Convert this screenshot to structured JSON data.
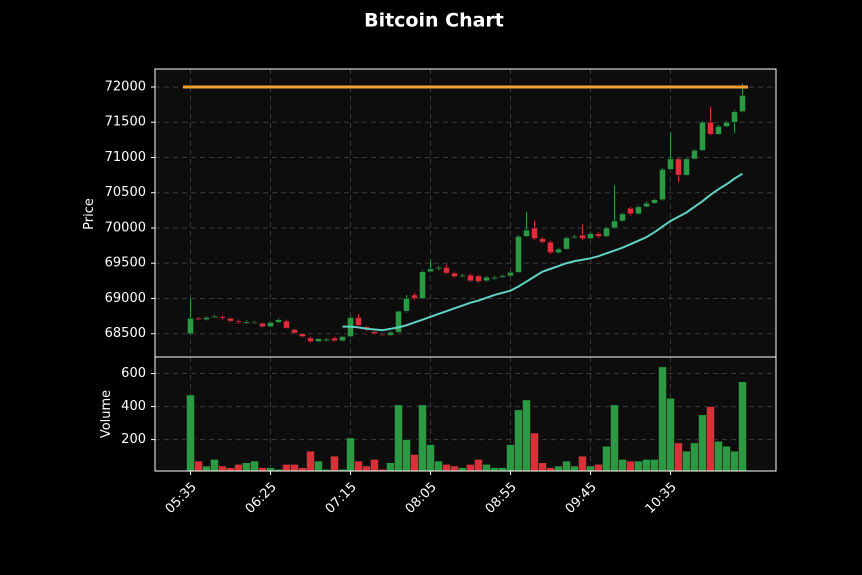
{
  "chart_data": {
    "type": "candlestick",
    "title": "Bitcoin Chart",
    "ylabel": "Price",
    "volume_label": "Volume",
    "categories": [
      "05:35",
      null,
      null,
      null,
      null,
      null,
      null,
      null,
      null,
      null,
      "06:25",
      null,
      null,
      null,
      null,
      null,
      null,
      null,
      null,
      null,
      "07:15",
      null,
      null,
      null,
      null,
      null,
      null,
      null,
      null,
      null,
      "08:05",
      null,
      null,
      null,
      null,
      null,
      null,
      null,
      null,
      null,
      "08:55",
      null,
      null,
      null,
      null,
      null,
      null,
      null,
      null,
      null,
      "09:45",
      null,
      null,
      null,
      null,
      null,
      null,
      null,
      null,
      null,
      "10:35",
      null,
      null,
      null,
      null,
      null,
      null,
      null,
      null,
      null
    ],
    "open": [
      68500,
      68720,
      68700,
      68730,
      68740,
      68720,
      68680,
      68650,
      68650,
      68650,
      68600,
      68660,
      68680,
      68560,
      68500,
      68440,
      68390,
      68400,
      68440,
      68400,
      68460,
      68730,
      68600,
      68530,
      68490,
      68480,
      68520,
      68820,
      69050,
      69000,
      69380,
      69420,
      69440,
      69360,
      69310,
      69330,
      69320,
      69250,
      69280,
      69300,
      69320,
      69370,
      69880,
      70000,
      69850,
      69800,
      69650,
      69700,
      69860,
      69900,
      69850,
      69920,
      69880,
      70000,
      70100,
      70280,
      70200,
      70300,
      70350,
      70400,
      70830,
      70980,
      70750,
      70980,
      71100,
      71500,
      71330,
      71440,
      71500,
      71650
    ],
    "high": [
      69000,
      68740,
      68750,
      68770,
      68760,
      68730,
      68700,
      68690,
      68680,
      68660,
      68670,
      68720,
      68700,
      68570,
      68510,
      68460,
      68440,
      68440,
      68460,
      68470,
      68750,
      68780,
      68610,
      68540,
      68500,
      68540,
      68830,
      69050,
      69080,
      69400,
      69550,
      69460,
      69480,
      69380,
      69350,
      69350,
      69340,
      69320,
      69320,
      69340,
      69390,
      69900,
      70230,
      70100,
      69870,
      69820,
      69720,
      69880,
      69900,
      70050,
      69940,
      69940,
      70020,
      70600,
      70220,
      70300,
      70320,
      70380,
      70420,
      70850,
      71350,
      71000,
      71000,
      71120,
      71520,
      71720,
      71460,
      71520,
      71670,
      72050
    ],
    "low": [
      68480,
      68690,
      68690,
      68720,
      68700,
      68660,
      68640,
      68640,
      68640,
      68590,
      68590,
      68650,
      68570,
      68500,
      68450,
      68370,
      68380,
      68390,
      68390,
      68390,
      68450,
      68600,
      68540,
      68490,
      68470,
      68470,
      68510,
      68800,
      68980,
      68990,
      69370,
      69400,
      69340,
      69300,
      69300,
      69230,
      69220,
      69240,
      69270,
      69290,
      69310,
      69360,
      69870,
      69830,
      69780,
      69630,
      69640,
      69690,
      69850,
      69830,
      69840,
      69860,
      69870,
      69990,
      70090,
      70180,
      70190,
      70290,
      70340,
      70390,
      70820,
      70650,
      70740,
      70970,
      71090,
      71310,
      71320,
      71430,
      71350,
      71640
    ],
    "close": [
      68720,
      68700,
      68730,
      68750,
      68720,
      68680,
      68660,
      68670,
      68660,
      68600,
      68660,
      68700,
      68580,
      68510,
      68460,
      68390,
      68430,
      68420,
      68400,
      68460,
      68730,
      68620,
      68560,
      68500,
      68480,
      68520,
      68820,
      69000,
      69000,
      69380,
      69420,
      69440,
      69360,
      69310,
      69330,
      69250,
      69240,
      69300,
      69300,
      69320,
      69370,
      69880,
      69970,
      69850,
      69800,
      69650,
      69700,
      69860,
      69880,
      69850,
      69920,
      69880,
      70000,
      70100,
      70200,
      70200,
      70300,
      70350,
      70400,
      70830,
      70980,
      70750,
      70980,
      71100,
      71500,
      71330,
      71440,
      71500,
      71650,
      71880
    ],
    "volume": [
      470,
      70,
      40,
      80,
      40,
      30,
      50,
      60,
      70,
      30,
      30,
      20,
      50,
      50,
      30,
      130,
      70,
      20,
      100,
      20,
      210,
      70,
      40,
      80,
      20,
      60,
      410,
      200,
      110,
      410,
      170,
      70,
      50,
      40,
      30,
      50,
      80,
      50,
      30,
      30,
      170,
      380,
      440,
      240,
      60,
      30,
      40,
      70,
      40,
      100,
      40,
      50,
      160,
      410,
      80,
      70,
      70,
      80,
      80,
      640,
      450,
      180,
      130,
      180,
      350,
      400,
      190,
      160,
      130,
      550
    ],
    "ma": {
      "color": "#5fd3c3",
      "values": [
        null,
        null,
        null,
        null,
        null,
        null,
        null,
        null,
        null,
        null,
        null,
        null,
        null,
        null,
        null,
        null,
        null,
        null,
        null,
        68600,
        68600,
        68590,
        68570,
        68560,
        68550,
        68570,
        68590,
        68620,
        68660,
        68700,
        68740,
        68780,
        68820,
        68860,
        68900,
        68940,
        68970,
        69010,
        69050,
        69080,
        69110,
        69170,
        69240,
        69310,
        69380,
        69420,
        69460,
        69500,
        69530,
        69550,
        69570,
        69600,
        69640,
        69680,
        69720,
        69770,
        69820,
        69870,
        69940,
        70020,
        70100,
        70160,
        70220,
        70300,
        70380,
        70470,
        70550,
        70620,
        70700,
        70770
      ]
    },
    "hline": {
      "value": 72000,
      "color": "#f5a033"
    },
    "up_color": "#2a9a45",
    "down_color": "#d9303a",
    "ylim": [
      68170,
      72255
    ],
    "yticks": [
      68500,
      69000,
      69500,
      70000,
      70500,
      71000,
      71500,
      72000
    ],
    "volume_ylim": [
      10,
      700
    ],
    "volume_yticks": [
      200,
      400,
      600
    ],
    "grid": true
  }
}
